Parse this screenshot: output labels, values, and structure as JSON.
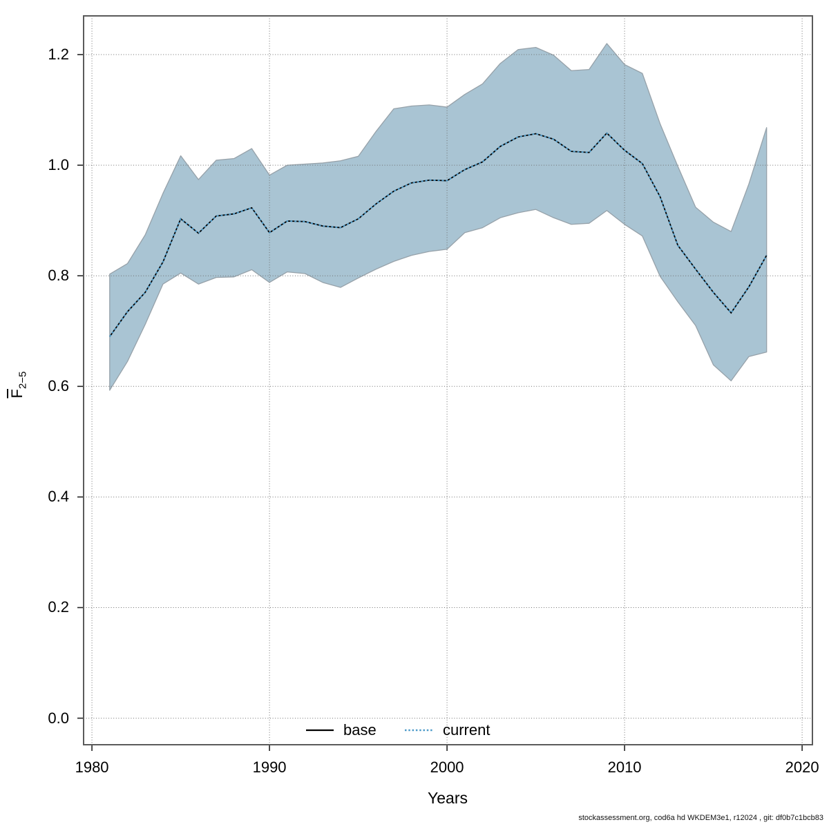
{
  "figure": {
    "x_axis_label": "Years",
    "y_axis_label_main": "F",
    "y_axis_label_sub": "2−5",
    "footer": "stockassessment.org, cod6a hd WKDEM3e1, r12024 , git: df0b7c1bcb83",
    "legend": {
      "base_label": "base",
      "current_label": "current"
    }
  },
  "chart_data": {
    "type": "line",
    "title": "",
    "xlabel": "Years",
    "ylabel": "Fbar 2-5",
    "grid": true,
    "legend_position": "bottom-center",
    "xlim": [
      1979.53,
      2020.58
    ],
    "ylim": [
      -0.048,
      1.27
    ],
    "x_ticks": [
      1980,
      1990,
      2000,
      2010,
      2020
    ],
    "y_ticks": [
      0.0,
      0.2,
      0.4,
      0.6,
      0.8,
      1.0,
      1.2
    ],
    "x": [
      1981,
      1982,
      1983,
      1984,
      1985,
      1986,
      1987,
      1988,
      1989,
      1990,
      1991,
      1992,
      1993,
      1994,
      1995,
      1996,
      1997,
      1998,
      1999,
      2000,
      2001,
      2002,
      2003,
      2004,
      2005,
      2006,
      2007,
      2008,
      2009,
      2010,
      2011,
      2012,
      2013,
      2014,
      2015,
      2016,
      2017,
      2018
    ],
    "series": [
      {
        "name": "base",
        "color": "#000000",
        "style": "solid",
        "values": [
          0.69,
          0.735,
          0.77,
          0.825,
          0.903,
          0.877,
          0.908,
          0.912,
          0.923,
          0.878,
          0.899,
          0.898,
          0.89,
          0.887,
          0.903,
          0.93,
          0.953,
          0.968,
          0.973,
          0.972,
          0.992,
          1.006,
          1.034,
          1.051,
          1.057,
          1.047,
          1.025,
          1.023,
          1.058,
          1.027,
          1.003,
          0.943,
          0.855,
          0.812,
          0.77,
          0.733,
          0.78,
          0.837
        ]
      },
      {
        "name": "current",
        "color": "#4d9bc9",
        "style": "dotted",
        "values": [
          0.69,
          0.735,
          0.77,
          0.825,
          0.903,
          0.877,
          0.908,
          0.912,
          0.923,
          0.878,
          0.899,
          0.898,
          0.89,
          0.887,
          0.903,
          0.93,
          0.953,
          0.968,
          0.973,
          0.972,
          0.992,
          1.006,
          1.034,
          1.051,
          1.057,
          1.047,
          1.025,
          1.023,
          1.058,
          1.027,
          1.003,
          0.943,
          0.855,
          0.812,
          0.77,
          0.733,
          0.78,
          0.837
        ]
      }
    ],
    "band": {
      "name": "current confidence interval",
      "fill_color": "#a9c4d3",
      "edge_color": "#96a1a9",
      "lower": [
        0.593,
        0.645,
        0.712,
        0.785,
        0.805,
        0.785,
        0.797,
        0.798,
        0.811,
        0.788,
        0.807,
        0.804,
        0.788,
        0.779,
        0.796,
        0.812,
        0.826,
        0.837,
        0.844,
        0.848,
        0.878,
        0.887,
        0.905,
        0.914,
        0.92,
        0.905,
        0.893,
        0.895,
        0.918,
        0.893,
        0.872,
        0.799,
        0.753,
        0.71,
        0.639,
        0.61,
        0.654,
        0.662
      ],
      "upper": [
        0.803,
        0.822,
        0.874,
        0.949,
        1.017,
        0.974,
        1.009,
        1.012,
        1.03,
        0.982,
        1.0,
        1.002,
        1.004,
        1.008,
        1.016,
        1.061,
        1.102,
        1.107,
        1.109,
        1.105,
        1.128,
        1.147,
        1.184,
        1.209,
        1.213,
        1.199,
        1.171,
        1.173,
        1.22,
        1.182,
        1.166,
        1.075,
        0.998,
        0.924,
        0.897,
        0.88,
        0.966,
        1.068
      ]
    }
  }
}
